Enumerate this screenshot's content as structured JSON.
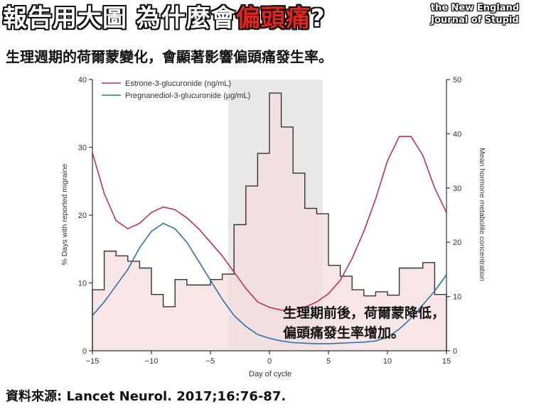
{
  "header": {
    "title_prefix": "報告用大圖 為什麼會",
    "title_highlight": "偏頭痛",
    "title_suffix": "?",
    "journal_line1": "the New England",
    "journal_line2": "Journal of Stupid"
  },
  "subtitle": "生理週期的荷爾蒙變化，會顯著影響偏頭痛發生率。",
  "annotation": {
    "line1": "生理期前後，荷爾蒙降低，",
    "line2": "偏頭痛發生率增加。"
  },
  "source": "資料來源: Lancet Neurol. 2017;16:76-87.",
  "colors": {
    "estrone": "#c0305a",
    "pregnanediol": "#2e6fb0",
    "bars_fill": "#f6dcdc",
    "shade": "#e8e8e8",
    "highlight": "#e3241b"
  },
  "chart_data": {
    "type": "bar",
    "xlabel": "Day of cycle",
    "ylabel_left": "% Days with reported migraine",
    "ylabel_right": "Mean hormone metabolite concentration",
    "xlim": [
      -15,
      15
    ],
    "ylim_left": [
      0,
      40
    ],
    "ylim_right": [
      0,
      50
    ],
    "x_ticks": [
      -15,
      -10,
      -5,
      0,
      5,
      10,
      15
    ],
    "x_tick_labels": [
      "−15",
      "−10",
      "−5",
      "0",
      "5",
      "10",
      "15"
    ],
    "y_ticks_left": [
      0,
      10,
      20,
      30,
      40
    ],
    "y_ticks_right": [
      0,
      10,
      20,
      30,
      40,
      50
    ],
    "shaded_region": [
      -3.5,
      4.5
    ],
    "grid": false,
    "legend_position": "top-left",
    "bars": {
      "name": "% Days with reported migraine",
      "days": [
        -15,
        -14,
        -13,
        -12,
        -11,
        -10,
        -9,
        -8,
        -7,
        -6,
        -5,
        -4,
        -3,
        -2,
        -1,
        0,
        1,
        2,
        3,
        4,
        5,
        6,
        7,
        8,
        9,
        10,
        11,
        12,
        13,
        14
      ],
      "values": [
        9.0,
        14.7,
        14.0,
        13.2,
        12.2,
        8.3,
        6.5,
        10.5,
        9.7,
        9.7,
        10.5,
        11.3,
        18.6,
        24.3,
        29.1,
        38.0,
        33.0,
        26.2,
        21.0,
        20.2,
        12.6,
        11.0,
        9.0,
        8.1,
        8.7,
        8.2,
        12.2,
        12.2,
        13.0,
        8.3
      ]
    },
    "series": [
      {
        "name": "Estrone-3-glucuronide (ng/mL)",
        "axis": "right",
        "x": [
          -15,
          -14,
          -13,
          -12,
          -11,
          -10,
          -9,
          -8,
          -7,
          -6,
          -5,
          -4,
          -3,
          -2,
          -1,
          0,
          1,
          2,
          3,
          4,
          5,
          6,
          7,
          8,
          9,
          10,
          11,
          12,
          13,
          14,
          15
        ],
        "values": [
          36.5,
          29,
          24,
          22.5,
          23.5,
          25.5,
          26.5,
          26,
          24.5,
          22.5,
          20,
          17.5,
          14.5,
          11.5,
          9,
          8,
          7.5,
          7.5,
          8,
          9,
          10.5,
          13,
          17,
          22,
          28,
          35,
          39.5,
          39.5,
          36,
          30,
          25.5
        ]
      },
      {
        "name": "Pregnanediol-3-glucuronide (μg/mL)",
        "axis": "right",
        "x": [
          -15,
          -14,
          -13,
          -12,
          -11,
          -10,
          -9,
          -8,
          -7,
          -6,
          -5,
          -4,
          -3,
          -2,
          -1,
          0,
          1,
          2,
          3,
          4,
          5,
          6,
          7,
          8,
          9,
          10,
          11,
          12,
          13,
          14,
          15
        ],
        "values": [
          6.5,
          9,
          12,
          15,
          19,
          22,
          23.5,
          22.5,
          20,
          16.5,
          13,
          9.5,
          6.5,
          4.5,
          3,
          2.3,
          1.8,
          1.5,
          1.4,
          1.3,
          1.3,
          1.4,
          1.5,
          1.6,
          1.8,
          2.5,
          4,
          6,
          8.5,
          11,
          14
        ]
      }
    ]
  }
}
